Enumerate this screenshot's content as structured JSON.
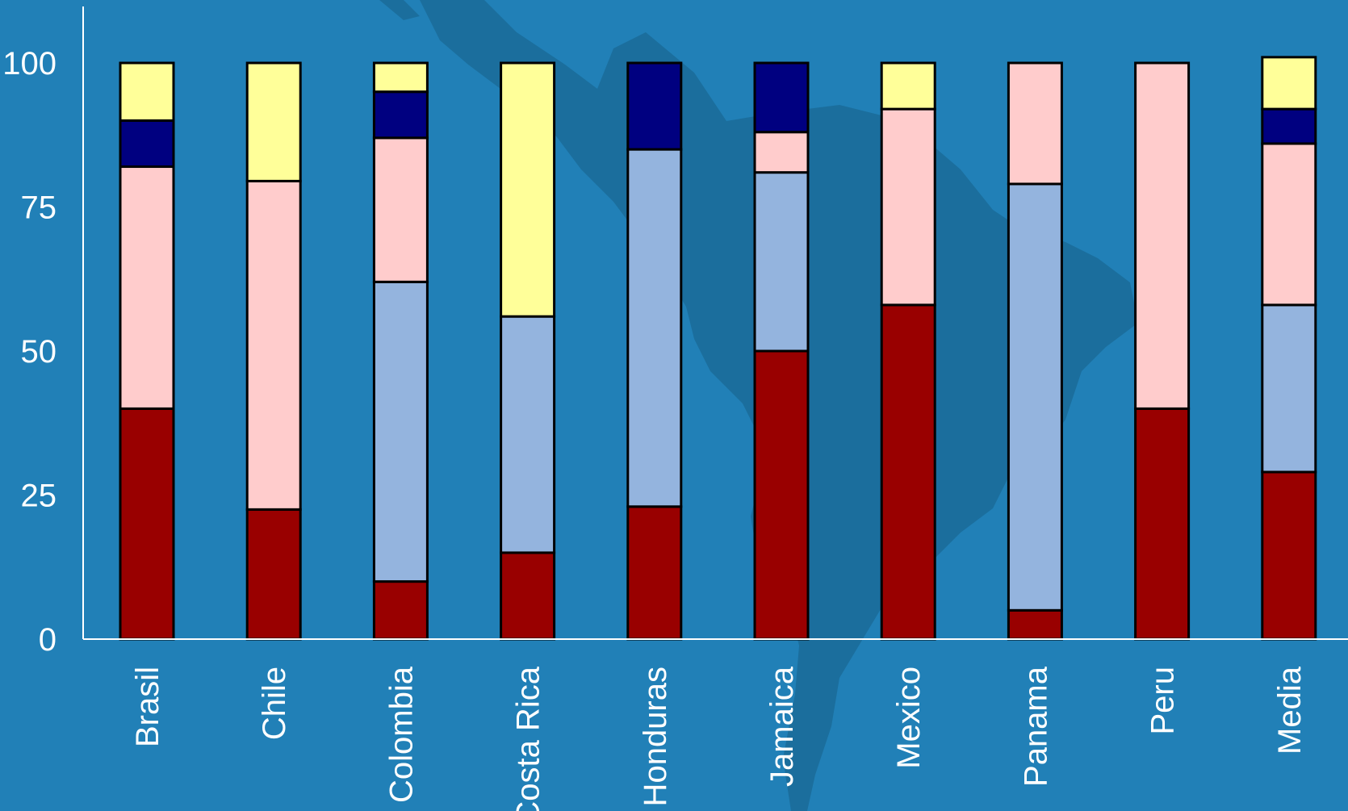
{
  "chart_data": {
    "type": "bar",
    "stacked": true,
    "title": "",
    "xlabel": "",
    "ylabel": "",
    "ylim": [
      0,
      100
    ],
    "yticks": [
      "0",
      "25",
      "50",
      "75",
      "100"
    ],
    "grid": false,
    "legend": "none",
    "categories": [
      "Brasil",
      "Chile",
      "Colombia",
      "Costa Rica",
      "Honduras",
      "Jamaica",
      "Mexico",
      "Panama",
      "Peru",
      "Media"
    ],
    "series": [
      {
        "color": "#990000",
        "values": [
          40,
          22.5,
          10,
          15,
          23,
          50,
          58,
          5,
          40,
          29
        ]
      },
      {
        "color": "#94b4de",
        "values": [
          0,
          0,
          52,
          41,
          62,
          31,
          0,
          74,
          0,
          29
        ]
      },
      {
        "color": "#ffcccc",
        "values": [
          42,
          57,
          25,
          0,
          0,
          7,
          34,
          21,
          60,
          28
        ]
      },
      {
        "color": "#000080",
        "values": [
          8,
          0,
          8,
          0,
          15,
          12,
          0,
          0,
          0,
          6
        ]
      },
      {
        "color": "#ffff99",
        "values": [
          10,
          20.5,
          5,
          44,
          0,
          0,
          8,
          0,
          0,
          9
        ]
      }
    ]
  },
  "colors": {
    "background": "#2180b7",
    "map_silhouette": "#1b6e9d",
    "axis": "#ffffff"
  }
}
